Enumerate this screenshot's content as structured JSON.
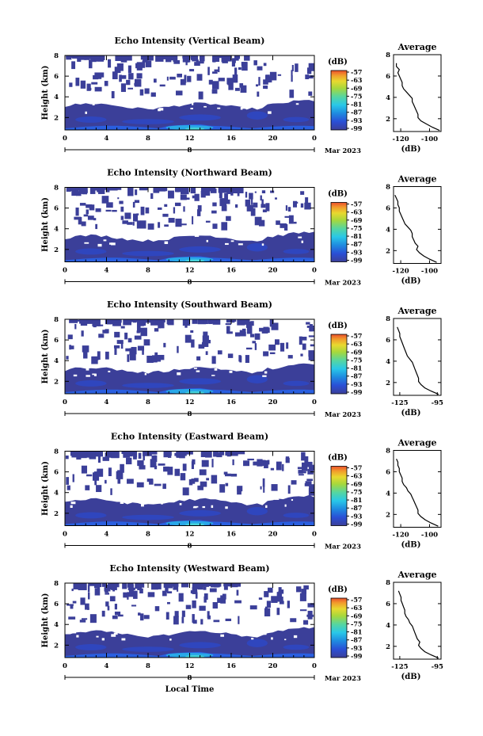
{
  "chart_data": [
    {
      "type": "heatmap",
      "title": "Echo Intensity (Vertical Beam)",
      "ylabel": "Height (km)",
      "xticks": [
        "0",
        "4",
        "8",
        "12",
        "16",
        "20",
        "0"
      ],
      "yticks": [
        "2",
        "4",
        "6",
        "8"
      ],
      "day_label": "8",
      "month_year": "Mar 2023",
      "colorbar": {
        "unit": "(dB)",
        "ticks": [
          "-57",
          "-63",
          "-69",
          "-75",
          "-81",
          "-87",
          "-93",
          "-99"
        ]
      },
      "avg_profile": {
        "title": "Average",
        "xlabel": "(dB)",
        "xticks": [
          "-120",
          "-100"
        ],
        "yticks": [
          "2",
          "4",
          "6",
          "8"
        ],
        "xlim": [
          -125,
          -92
        ],
        "ylim": [
          0.8,
          8
        ],
        "heights": [
          0.9,
          1.2,
          1.5,
          1.8,
          2.1,
          2.4,
          2.7,
          3.0,
          3.3,
          3.6,
          3.9,
          4.2,
          4.5,
          4.8,
          5.1,
          5.4,
          5.7,
          6.0,
          6.3,
          6.6,
          6.9,
          7.2
        ],
        "values": [
          -93,
          -98,
          -102,
          -106,
          -108,
          -108,
          -109,
          -110,
          -111,
          -112,
          -112,
          -114,
          -116,
          -118,
          -119,
          -119,
          -120,
          -121,
          -122,
          -121,
          -123,
          -123
        ]
      },
      "panel": 0
    },
    {
      "type": "heatmap",
      "title": "Echo Intensity (Northward Beam)",
      "ylabel": "Height (km)",
      "xticks": [
        "0",
        "4",
        "8",
        "12",
        "16",
        "20",
        "0"
      ],
      "yticks": [
        "2",
        "4",
        "6",
        "8"
      ],
      "day_label": "8",
      "month_year": "Mar 2023",
      "colorbar": {
        "unit": "(dB)",
        "ticks": [
          "-57",
          "-63",
          "-69",
          "-75",
          "-81",
          "-87",
          "-93",
          "-99"
        ]
      },
      "avg_profile": {
        "title": "Average",
        "xlabel": "(dB)",
        "xticks": [
          "-120",
          "-100"
        ],
        "yticks": [
          "2",
          "4",
          "6",
          "8"
        ],
        "xlim": [
          -125,
          -92
        ],
        "ylim": [
          0.8,
          8
        ],
        "heights": [
          0.9,
          1.2,
          1.5,
          1.8,
          2.1,
          2.4,
          2.7,
          3.0,
          3.3,
          3.6,
          3.9,
          4.2,
          4.5,
          4.8,
          5.1,
          5.4,
          5.7,
          6.0,
          6.3,
          6.6,
          6.9,
          7.2
        ],
        "values": [
          -95,
          -100,
          -104,
          -107,
          -109,
          -108,
          -110,
          -111,
          -112,
          -112,
          -113,
          -115,
          -117,
          -118,
          -119,
          -120,
          -121,
          -121,
          -122,
          -122,
          -123,
          -124
        ]
      },
      "panel": 1
    },
    {
      "type": "heatmap",
      "title": "Echo Intensity (Southward Beam)",
      "ylabel": "Height (km)",
      "xticks": [
        "0",
        "4",
        "8",
        "12",
        "16",
        "20",
        "0"
      ],
      "yticks": [
        "2",
        "4",
        "6",
        "8"
      ],
      "day_label": "8",
      "month_year": "Mar 2023",
      "colorbar": {
        "unit": "(dB)",
        "ticks": [
          "-57",
          "-63",
          "-69",
          "-75",
          "-81",
          "-87",
          "-93",
          "-99"
        ]
      },
      "avg_profile": {
        "title": "Average",
        "xlabel": "(dB)",
        "xticks": [
          "-125",
          "-95"
        ],
        "yticks": [
          "2",
          "4",
          "6",
          "8"
        ],
        "xlim": [
          -130,
          -92
        ],
        "ylim": [
          0.8,
          8
        ],
        "heights": [
          0.9,
          1.2,
          1.5,
          1.8,
          2.1,
          2.4,
          2.7,
          3.0,
          3.3,
          3.6,
          3.9,
          4.2,
          4.5,
          4.8,
          5.1,
          5.4,
          5.7,
          6.0,
          6.3,
          6.6,
          6.9,
          7.2
        ],
        "values": [
          -94,
          -100,
          -105,
          -108,
          -110,
          -110,
          -111,
          -112,
          -113,
          -114,
          -115,
          -117,
          -119,
          -120,
          -121,
          -122,
          -123,
          -124,
          -125,
          -125,
          -126,
          -127
        ]
      },
      "panel": 2
    },
    {
      "type": "heatmap",
      "title": "Echo Intensity (Eastward Beam)",
      "ylabel": "Height (km)",
      "xticks": [
        "0",
        "4",
        "8",
        "12",
        "16",
        "20",
        "0"
      ],
      "yticks": [
        "2",
        "4",
        "6",
        "8"
      ],
      "day_label": "8",
      "month_year": "Mar 2023",
      "colorbar": {
        "unit": "(dB)",
        "ticks": [
          "-57",
          "-63",
          "-69",
          "-75",
          "-81",
          "-87",
          "-93",
          "-99"
        ]
      },
      "avg_profile": {
        "title": "Average",
        "xlabel": "(dB)",
        "xticks": [
          "-120",
          "-100"
        ],
        "yticks": [
          "2",
          "4",
          "6",
          "8"
        ],
        "xlim": [
          -125,
          -92
        ],
        "ylim": [
          0.8,
          8
        ],
        "heights": [
          0.9,
          1.2,
          1.5,
          1.8,
          2.1,
          2.4,
          2.7,
          3.0,
          3.3,
          3.6,
          3.9,
          4.2,
          4.5,
          4.8,
          5.1,
          5.4,
          5.7,
          6.0,
          6.3,
          6.6,
          6.9,
          7.2
        ],
        "values": [
          -94,
          -99,
          -103,
          -106,
          -108,
          -108,
          -109,
          -110,
          -111,
          -112,
          -113,
          -115,
          -116,
          -118,
          -119,
          -119,
          -120,
          -121,
          -121,
          -122,
          -122,
          -123
        ]
      },
      "panel": 3
    },
    {
      "type": "heatmap",
      "title": "Echo Intensity (Westward Beam)",
      "ylabel": "Height (km)",
      "xlabel": "Local Time",
      "xticks": [
        "0",
        "4",
        "8",
        "12",
        "16",
        "20",
        "0"
      ],
      "yticks": [
        "2",
        "4",
        "6",
        "8"
      ],
      "day_label": "8",
      "month_year": "Mar 2023",
      "colorbar": {
        "unit": "(dB)",
        "ticks": [
          "-57",
          "-63",
          "-69",
          "-75",
          "-81",
          "-87",
          "-93",
          "-99"
        ]
      },
      "avg_profile": {
        "title": "Average",
        "xlabel": "(dB)",
        "xticks": [
          "-125",
          "-95"
        ],
        "yticks": [
          "2",
          "4",
          "6",
          "8"
        ],
        "xlim": [
          -130,
          -92
        ],
        "ylim": [
          0.8,
          8
        ],
        "heights": [
          0.9,
          1.2,
          1.5,
          1.8,
          2.1,
          2.4,
          2.7,
          3.0,
          3.3,
          3.6,
          3.9,
          4.2,
          4.5,
          4.8,
          5.1,
          5.4,
          5.7,
          6.0,
          6.3,
          6.6,
          6.9,
          7.2
        ],
        "values": [
          -94,
          -100,
          -105,
          -108,
          -110,
          -109,
          -111,
          -112,
          -113,
          -114,
          -115,
          -117,
          -118,
          -120,
          -121,
          -121,
          -122,
          -123,
          -124,
          -124,
          -125,
          -126
        ]
      },
      "panel": 4
    }
  ],
  "colors": {
    "scale": [
      "#3b3f99",
      "#2a4fd6",
      "#1f8be0",
      "#29c8e8",
      "#56d6a0",
      "#a6d83c",
      "#e8d92f",
      "#f29b2c",
      "#ea4f2b"
    ],
    "background": "#ffffff"
  }
}
